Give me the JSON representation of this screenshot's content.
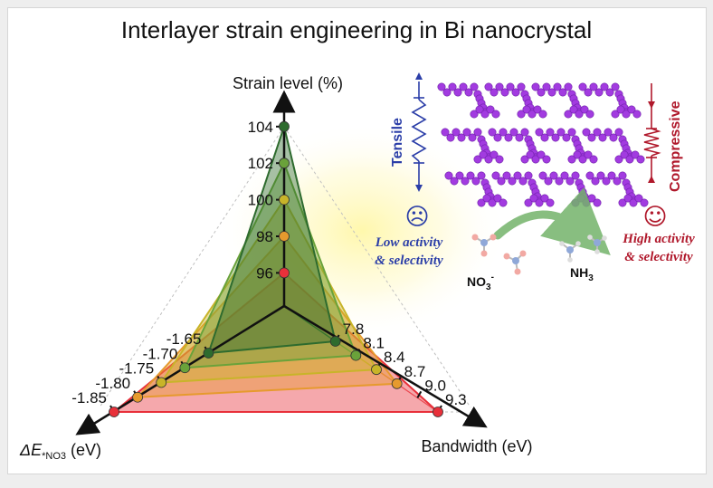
{
  "title": "Interlayer strain engineering in Bi nanocrystal",
  "axes": {
    "strain": {
      "label": "Strain level (%)",
      "ticks": [
        "104",
        "102",
        "100",
        "98",
        "96"
      ]
    },
    "energy": {
      "label_prefix": "ΔE",
      "label_sub": "*NO3",
      "label_suffix": " (eV)",
      "ticks": [
        "-1.65",
        "-1.70",
        "-1.75",
        "-1.80",
        "-1.85"
      ]
    },
    "bandwidth": {
      "label": "Bandwidth (eV)",
      "ticks": [
        "7.8",
        "8.1",
        "8.4",
        "8.7",
        "9.0",
        "9.3"
      ]
    }
  },
  "series": [
    {
      "name": "104",
      "strain": 104,
      "energy": -1.65,
      "bandwidth": 7.8,
      "color": "#2e6b2e"
    },
    {
      "name": "102",
      "strain": 102,
      "energy": -1.7,
      "bandwidth": 8.1,
      "color": "#6aa23a"
    },
    {
      "name": "100",
      "strain": 100,
      "energy": -1.75,
      "bandwidth": 8.4,
      "color": "#c8b429"
    },
    {
      "name": "98",
      "strain": 98,
      "energy": -1.8,
      "bandwidth": 8.7,
      "color": "#e69a2e"
    },
    {
      "name": "96",
      "strain": 96,
      "energy": -1.85,
      "bandwidth": 9.3,
      "color": "#e8303a"
    }
  ],
  "schematic": {
    "tensile": "Tensile",
    "compressive": "Compressive",
    "low": [
      "Low activity",
      "& selectivity"
    ],
    "high": [
      "High activity",
      "& selectivity"
    ],
    "reactant": "NO",
    "reactant_sub": "3",
    "reactant_sup": "-",
    "product": "NH",
    "product_sub": "3",
    "sad_face": "☹",
    "happy_face": "☺",
    "tensile_color": "#2b3ea8",
    "compressive_color": "#b0182b",
    "crystal_color": "#a23be0"
  }
}
